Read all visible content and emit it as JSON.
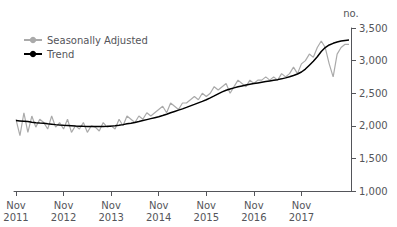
{
  "chart_data": {
    "type": "line",
    "ylabel": "no.",
    "categories": [
      "Nov\n2011",
      null,
      null,
      null,
      null,
      null,
      null,
      null,
      null,
      null,
      null,
      null,
      "Nov\n2012",
      null,
      null,
      null,
      null,
      null,
      null,
      null,
      null,
      null,
      null,
      null,
      "Nov\n2013",
      null,
      null,
      null,
      null,
      null,
      null,
      null,
      null,
      null,
      null,
      null,
      "Nov\n2014",
      null,
      null,
      null,
      null,
      null,
      null,
      null,
      null,
      null,
      null,
      null,
      "Nov\n2015",
      null,
      null,
      null,
      null,
      null,
      null,
      null,
      null,
      null,
      null,
      null,
      "Nov\n2016",
      null,
      null,
      null,
      null,
      null,
      null,
      null,
      null,
      null,
      null,
      null,
      "Nov\n2017",
      null,
      null,
      null,
      null,
      null,
      null,
      null,
      null,
      null,
      null,
      null,
      null
    ],
    "series": [
      {
        "name": "Seasonally Adjusted",
        "color": "#aaaaaa",
        "values": [
          2100,
          1850,
          2200,
          1900,
          2150,
          1980,
          2100,
          2050,
          1950,
          2150,
          1980,
          2050,
          1950,
          2100,
          1900,
          2000,
          1950,
          2050,
          1900,
          2000,
          1980,
          1920,
          2050,
          1980,
          2000,
          1950,
          2100,
          2000,
          2150,
          2100,
          2050,
          2150,
          2100,
          2200,
          2150,
          2200,
          2250,
          2300,
          2200,
          2350,
          2300,
          2250,
          2350,
          2350,
          2400,
          2450,
          2400,
          2500,
          2450,
          2500,
          2600,
          2550,
          2600,
          2650,
          2500,
          2600,
          2700,
          2650,
          2600,
          2700,
          2650,
          2700,
          2700,
          2750,
          2700,
          2750,
          2700,
          2800,
          2750,
          2800,
          2900,
          2800,
          2950,
          3000,
          3100,
          3050,
          3200,
          3300,
          3200,
          2950,
          2750,
          3100,
          3200,
          3250,
          3250
        ]
      },
      {
        "name": "Trend",
        "color": "#000000",
        "values": [
          2080,
          2075,
          2070,
          2065,
          2055,
          2048,
          2042,
          2038,
          2030,
          2025,
          2018,
          2012,
          2008,
          2005,
          2002,
          1998,
          1995,
          1992,
          1990,
          1989,
          1988,
          1988,
          1990,
          1992,
          1995,
          2000,
          2008,
          2018,
          2030,
          2040,
          2052,
          2065,
          2080,
          2095,
          2110,
          2125,
          2140,
          2158,
          2178,
          2200,
          2220,
          2240,
          2260,
          2282,
          2305,
          2328,
          2352,
          2375,
          2400,
          2428,
          2458,
          2490,
          2520,
          2545,
          2565,
          2582,
          2598,
          2612,
          2625,
          2638,
          2648,
          2658,
          2668,
          2678,
          2688,
          2698,
          2708,
          2720,
          2735,
          2752,
          2772,
          2795,
          2825,
          2870,
          2930,
          2990,
          3060,
          3140,
          3200,
          3240,
          3265,
          3285,
          3300,
          3310,
          3315
        ]
      }
    ],
    "ylim": [
      1000,
      3500
    ],
    "yticks": [
      1000,
      1500,
      2000,
      2500,
      3000,
      3500
    ],
    "grid": false,
    "legend": "upper left"
  }
}
